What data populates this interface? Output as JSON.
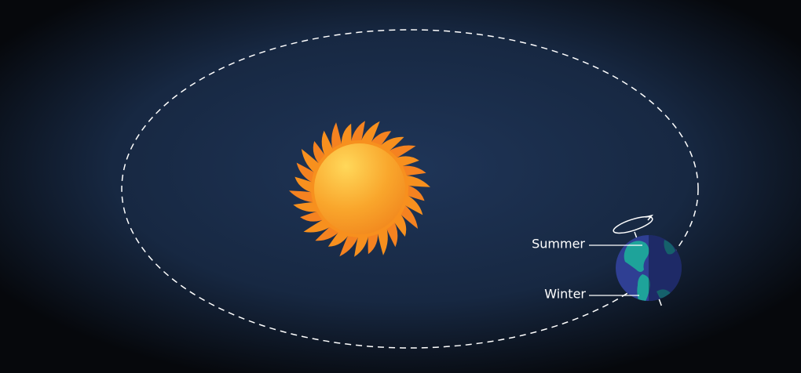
{
  "labels": [
    {
      "text": "Summer"
    },
    {
      "text": "Winter"
    }
  ]
}
